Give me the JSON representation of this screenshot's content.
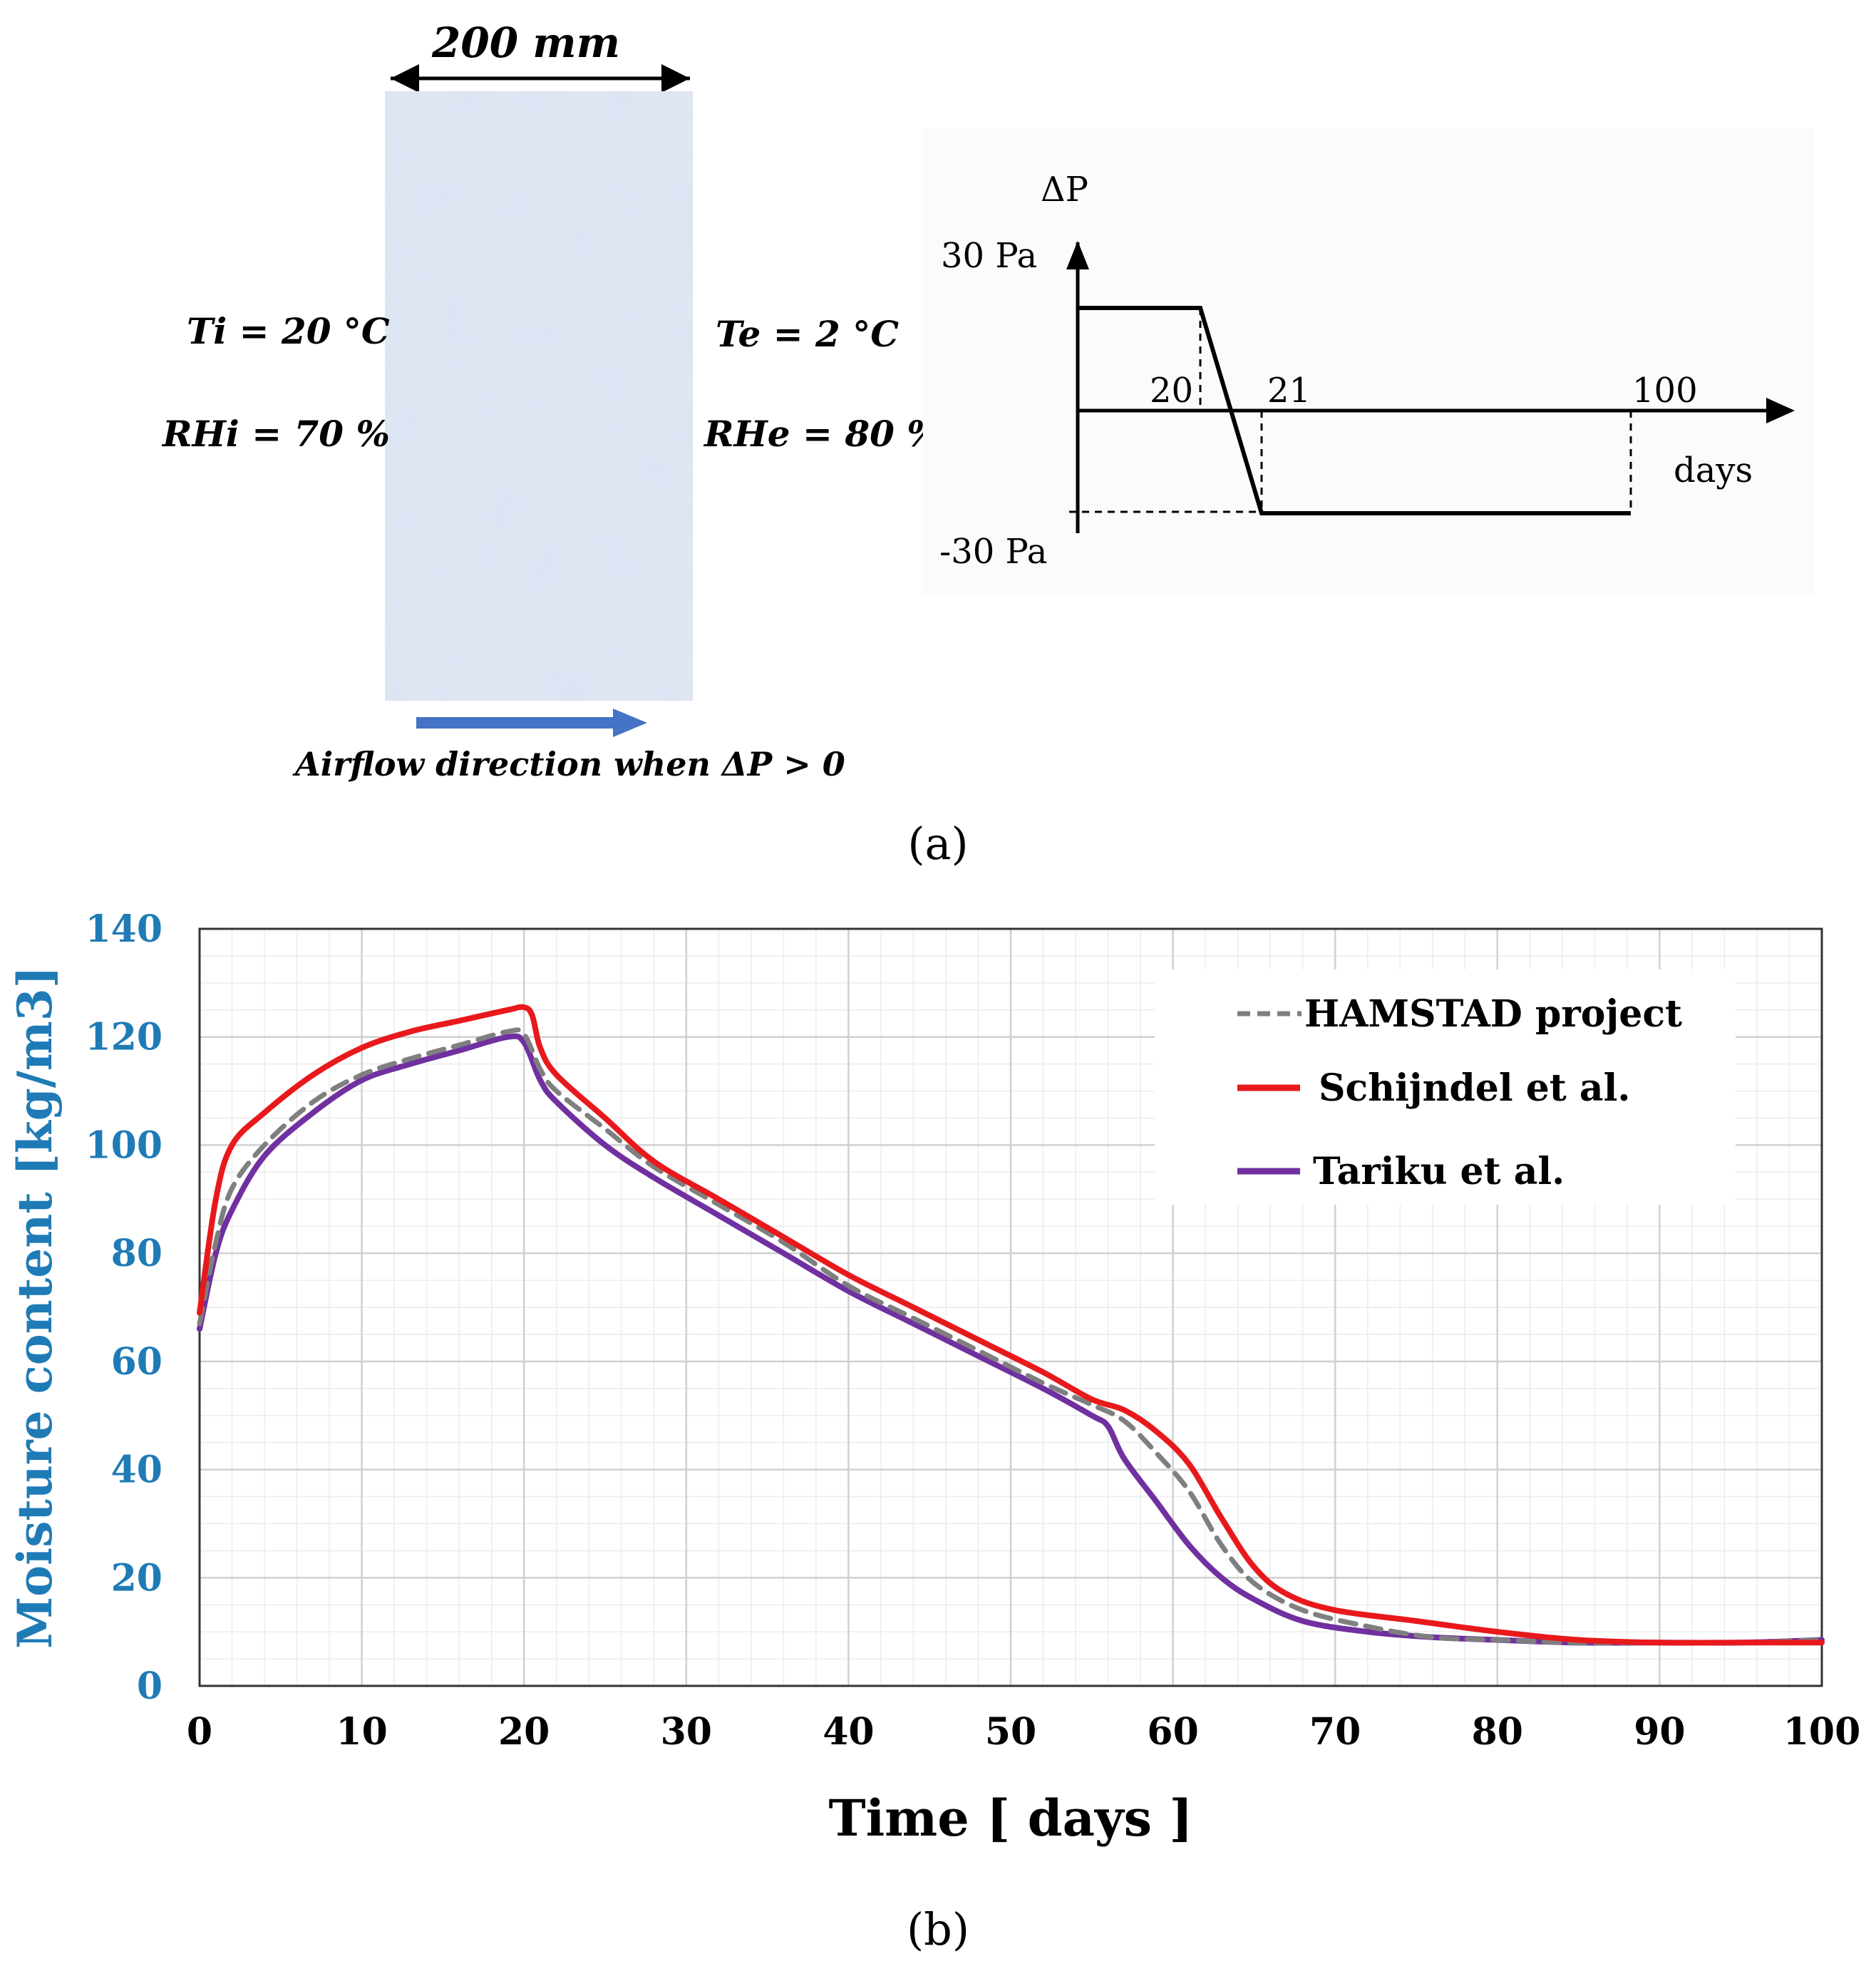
{
  "panel_a": {
    "width_label": "200 mm",
    "ti_label": "Ti = 20 °C",
    "rhi_label": "RHi = 70 %",
    "te_label": "Te = 2  °C",
    "rhe_label": "RHe = 80 %",
    "airflow_label": "Airflow direction when  ΔP > 0",
    "caption": "(a)",
    "pressure_diagram": {
      "y_label": "ΔP",
      "x_label": "days",
      "top_label": "30 Pa",
      "bottom_label": "-30 Pa",
      "tick_labels": [
        "20",
        "21",
        "100"
      ],
      "schedule": [
        {
          "day": 0,
          "pa": 30
        },
        {
          "day": 20,
          "pa": 30
        },
        {
          "day": 21,
          "pa": -30
        },
        {
          "day": 100,
          "pa": -30
        }
      ]
    },
    "colors": {
      "arrow": "#4472c4",
      "slab": "#c8d4ea"
    }
  },
  "chart_data": {
    "type": "line",
    "title": "",
    "xlabel": "Time [ days ]",
    "ylabel": "Moisture content [kg/m3]",
    "xlim": [
      0,
      100
    ],
    "ylim": [
      0,
      140
    ],
    "x_ticks": [
      0,
      10,
      20,
      30,
      40,
      50,
      60,
      70,
      80,
      90,
      100
    ],
    "y_ticks": [
      0,
      20,
      40,
      60,
      80,
      100,
      120,
      140
    ],
    "grid": true,
    "legend_position": "top-right",
    "series": [
      {
        "name": "HAMSTAD project",
        "style": "dashed",
        "color": "#7f7f7f",
        "points": [
          [
            0,
            67
          ],
          [
            1,
            82
          ],
          [
            2,
            92
          ],
          [
            4,
            100
          ],
          [
            7,
            108
          ],
          [
            10,
            113
          ],
          [
            13,
            116
          ],
          [
            16,
            118.5
          ],
          [
            19,
            121
          ],
          [
            20,
            120.5
          ],
          [
            21,
            114
          ],
          [
            22,
            110
          ],
          [
            25,
            103
          ],
          [
            28,
            96
          ],
          [
            32,
            89
          ],
          [
            36,
            82
          ],
          [
            40,
            74
          ],
          [
            44,
            68
          ],
          [
            48,
            62
          ],
          [
            52,
            56
          ],
          [
            55,
            52
          ],
          [
            57,
            49
          ],
          [
            59,
            43
          ],
          [
            61,
            36
          ],
          [
            63,
            26
          ],
          [
            65,
            19
          ],
          [
            68,
            14
          ],
          [
            72,
            11
          ],
          [
            76,
            9
          ],
          [
            80,
            8.5
          ],
          [
            85,
            8
          ],
          [
            90,
            8
          ],
          [
            95,
            8
          ],
          [
            100,
            8.5
          ]
        ]
      },
      {
        "name": "Schijndel et al.",
        "style": "solid",
        "color": "#e8191c",
        "points": [
          [
            0,
            69
          ],
          [
            1,
            90
          ],
          [
            2,
            100
          ],
          [
            4,
            106
          ],
          [
            7,
            113
          ],
          [
            10,
            118
          ],
          [
            13,
            121
          ],
          [
            16,
            123
          ],
          [
            19,
            125
          ],
          [
            20,
            125.5
          ],
          [
            20.5,
            124
          ],
          [
            21,
            118
          ],
          [
            22,
            113
          ],
          [
            25,
            105
          ],
          [
            28,
            97
          ],
          [
            32,
            90
          ],
          [
            36,
            83
          ],
          [
            40,
            76
          ],
          [
            44,
            70
          ],
          [
            48,
            64
          ],
          [
            52,
            58
          ],
          [
            55,
            53
          ],
          [
            57,
            51
          ],
          [
            59,
            47
          ],
          [
            61,
            41
          ],
          [
            63,
            31
          ],
          [
            65,
            22
          ],
          [
            67,
            17
          ],
          [
            70,
            14
          ],
          [
            75,
            12
          ],
          [
            80,
            10
          ],
          [
            85,
            8.5
          ],
          [
            90,
            8
          ],
          [
            95,
            8
          ],
          [
            100,
            8
          ]
        ]
      },
      {
        "name": "Tariku et al.",
        "style": "solid",
        "color": "#7030a0",
        "points": [
          [
            0,
            66
          ],
          [
            1,
            80
          ],
          [
            2,
            88
          ],
          [
            4,
            98
          ],
          [
            7,
            106
          ],
          [
            10,
            112
          ],
          [
            13,
            115
          ],
          [
            16,
            117.5
          ],
          [
            19,
            120
          ],
          [
            20,
            119
          ],
          [
            21,
            112
          ],
          [
            22,
            108
          ],
          [
            25,
            100
          ],
          [
            28,
            94
          ],
          [
            32,
            87
          ],
          [
            36,
            80
          ],
          [
            40,
            73
          ],
          [
            44,
            67
          ],
          [
            48,
            61
          ],
          [
            52,
            55
          ],
          [
            55,
            50
          ],
          [
            56,
            48
          ],
          [
            57,
            42
          ],
          [
            59,
            34
          ],
          [
            61,
            26
          ],
          [
            63,
            20
          ],
          [
            65,
            16
          ],
          [
            68,
            12
          ],
          [
            72,
            10
          ],
          [
            76,
            9
          ],
          [
            80,
            8.5
          ],
          [
            85,
            8
          ],
          [
            90,
            8
          ],
          [
            95,
            8
          ],
          [
            100,
            8.5
          ]
        ]
      }
    ],
    "caption": "(b)",
    "colors": {
      "axis_text": "#1f7bb6"
    }
  }
}
